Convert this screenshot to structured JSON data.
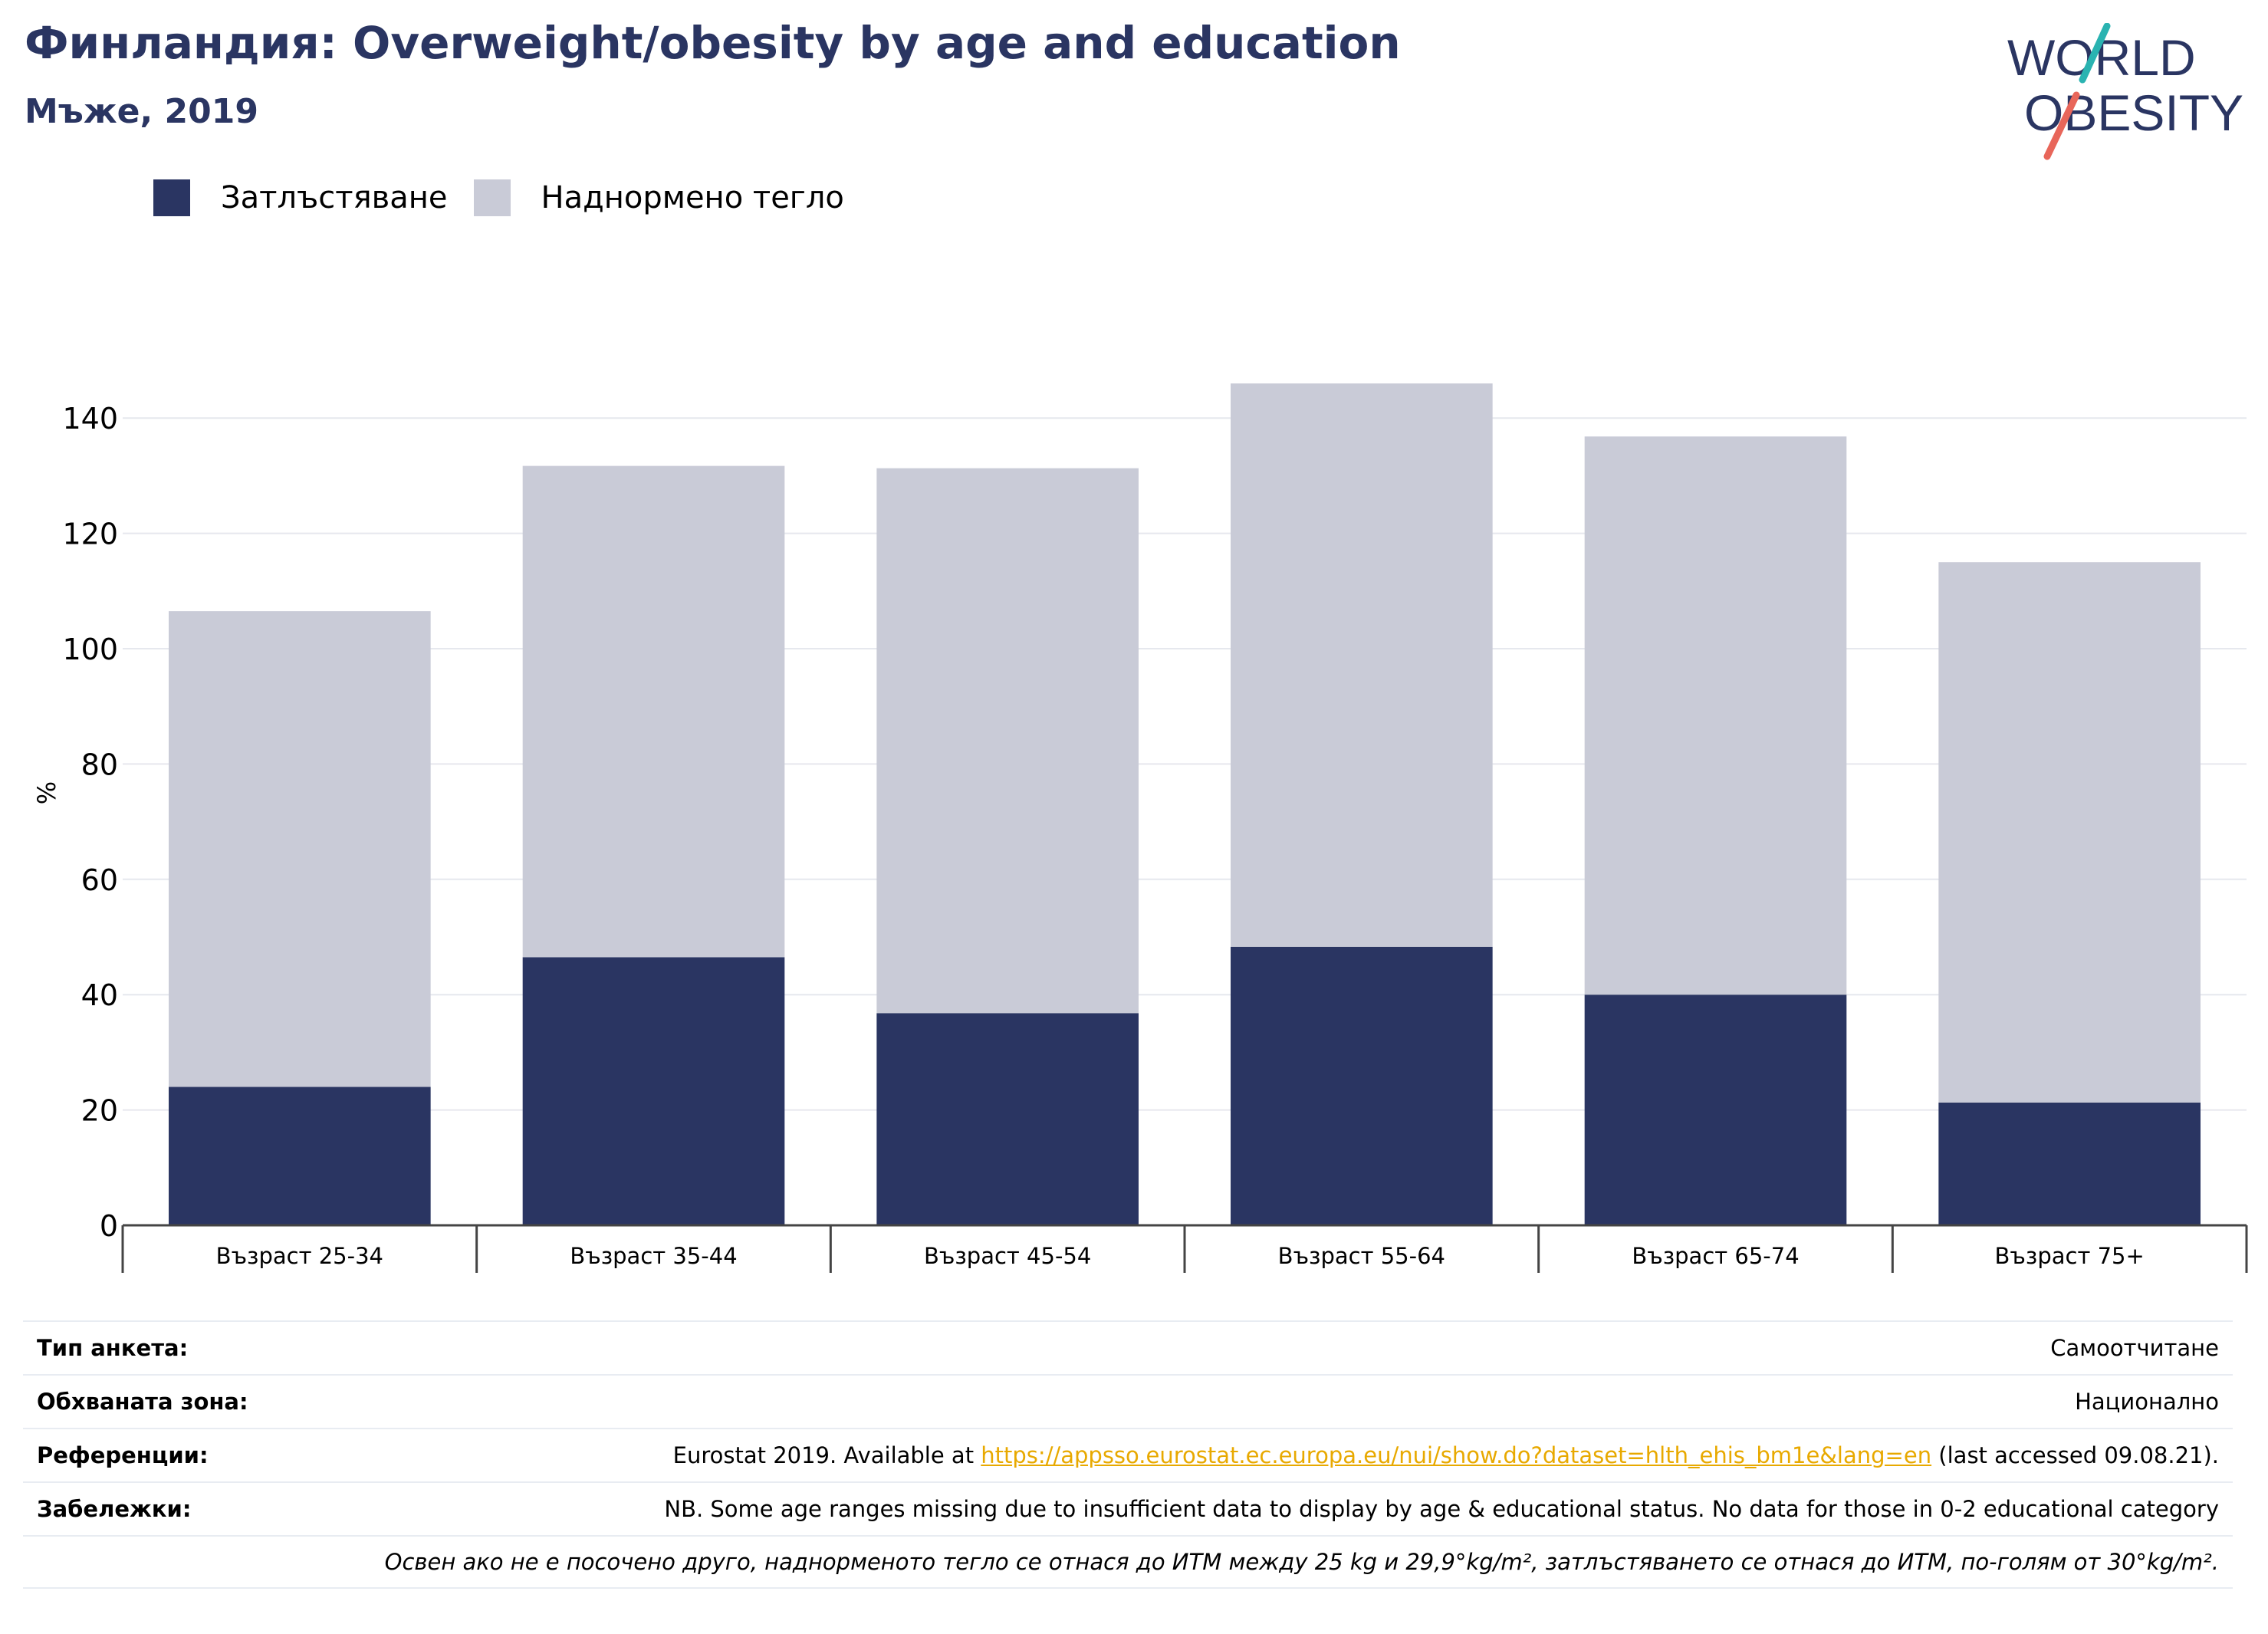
{
  "header": {
    "title": "Финландия: Overweight/obesity by age and education",
    "subtitle": "Мъже, 2019"
  },
  "logo": {
    "line1": "WORLD",
    "line2": "OBESITY"
  },
  "colors": {
    "obesity": "#2a3562",
    "overweight": "#c9cbd7",
    "accent_teal": "#2ab3b1",
    "accent_coral": "#e8665a"
  },
  "chart_data": {
    "type": "bar",
    "stacked": true,
    "categories": [
      "Възраст 25-34",
      "Възраст 35-44",
      "Възраст 45-54",
      "Възраст 55-64",
      "Възраст 65-74",
      "Възраст 75+"
    ],
    "series": [
      {
        "name": "Затлъстяване",
        "values": [
          24,
          46.5,
          36.8,
          48.3,
          40,
          21.3
        ]
      },
      {
        "name": "Наднормено тегло",
        "values": [
          82.5,
          85.2,
          94.5,
          97.7,
          96.8,
          93.7
        ]
      }
    ],
    "ylabel": "%",
    "ylim": [
      0,
      150
    ],
    "yticks": [
      0,
      20,
      40,
      60,
      80,
      100,
      120,
      140
    ],
    "grid": true,
    "legend_position": "top-left"
  },
  "meta": {
    "survey_key": "Тип анкета:",
    "survey_val": "Самоотчитане",
    "area_key": "Обхваната зона:",
    "area_val": "Национално",
    "ref_key": "Референции:",
    "ref_prefix": "Eurostat 2019. Available at ",
    "ref_link": "https://appsso.eurostat.ec.europa.eu/nui/show.do?dataset=hlth_ehis_bm1e&lang=en",
    "ref_suffix": " (last accessed 09.08.21).",
    "notes_key": "Забележки:",
    "notes_val": "NB. Some age ranges missing due to insufficient data to display by age & educational status. No data for those in 0-2 educational category",
    "definition": "Освен ако не е посочено друго, наднорменото тегло се отнася до ИТМ между 25 kg и 29,9°kg/m², затлъстяването се отнася до ИТМ, по-голям от 30°kg/m²."
  }
}
